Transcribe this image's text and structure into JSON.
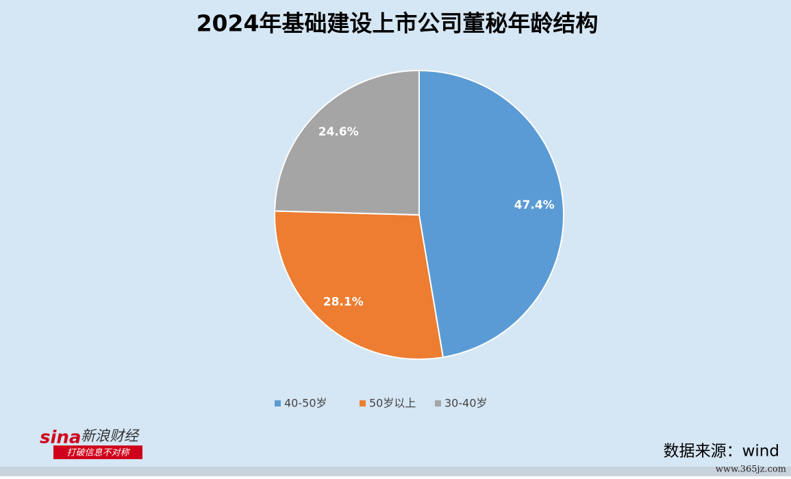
{
  "chart_data": {
    "type": "pie",
    "title": "2024年基础建设上市公司董秘年龄结构",
    "categories": [
      "40-50岁",
      "50岁以上",
      "30-40岁"
    ],
    "values": [
      47.4,
      28.1,
      24.6
    ],
    "value_labels": [
      "47.4%",
      "28.1%",
      "24.6%"
    ],
    "colors": [
      "#5b9bd5",
      "#ed7d31",
      "#a5a5a5"
    ],
    "legend": "bottom"
  },
  "source": "数据来源：wind",
  "logo": {
    "brand": "sina",
    "name": "新浪财经",
    "slogan": "打破信息不对称"
  },
  "watermark": "www.365jz.com"
}
